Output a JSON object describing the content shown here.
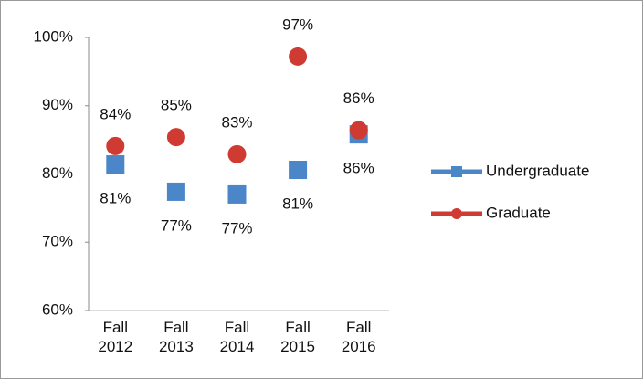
{
  "chart_data": {
    "type": "scatter",
    "categories": [
      "Fall 2012",
      "Fall 2013",
      "Fall 2014",
      "Fall 2015",
      "Fall 2016"
    ],
    "series": [
      {
        "name": "Undergraduate",
        "color": "#4a86c8",
        "marker": "square",
        "values": [
          81.4,
          77.4,
          77.0,
          80.6,
          85.8
        ],
        "value_labels": [
          "81%",
          "77%",
          "77%",
          "81%",
          "86%"
        ],
        "label_position": "below"
      },
      {
        "name": "Graduate",
        "color": "#cf3b33",
        "marker": "circle",
        "values": [
          84.1,
          85.4,
          82.9,
          97.2,
          86.4
        ],
        "value_labels": [
          "84%",
          "85%",
          "83%",
          "97%",
          "86%"
        ],
        "label_position": "above"
      }
    ],
    "ylim": [
      60,
      100
    ],
    "yticks": [
      {
        "value": 60,
        "label": "60%"
      },
      {
        "value": 70,
        "label": "70%"
      },
      {
        "value": 80,
        "label": "80%"
      },
      {
        "value": 90,
        "label": "90%"
      },
      {
        "value": 100,
        "label": "100%"
      }
    ],
    "grid": false,
    "legend": "right"
  }
}
